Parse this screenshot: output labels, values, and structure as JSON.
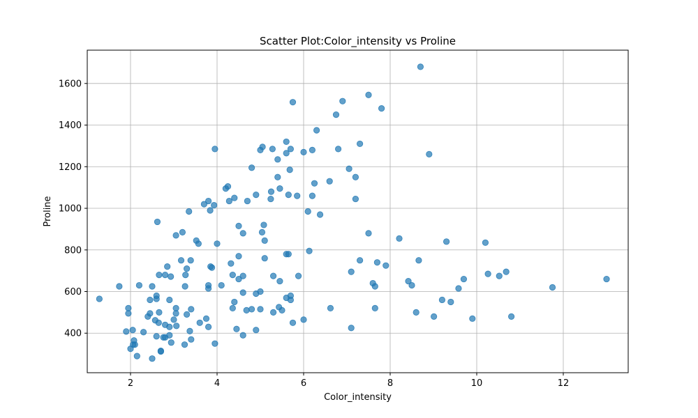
{
  "chart_data": {
    "type": "scatter",
    "title": "Scatter Plot:Color_intensity vs Proline",
    "xlabel": "Color_intensity",
    "ylabel": "Proline",
    "xlim": [
      1.0,
      13.5
    ],
    "ylim": [
      210,
      1760
    ],
    "xticks": [
      2,
      4,
      6,
      8,
      10,
      12
    ],
    "yticks": [
      400,
      600,
      800,
      1000,
      1200,
      1400,
      1600
    ],
    "grid": true,
    "marker_color": "#1f77b4",
    "marker_alpha": 0.7,
    "points": [
      [
        1.28,
        565
      ],
      [
        1.74,
        625
      ],
      [
        1.9,
        408
      ],
      [
        1.95,
        495
      ],
      [
        1.95,
        520
      ],
      [
        2.0,
        325
      ],
      [
        2.05,
        415
      ],
      [
        2.06,
        345
      ],
      [
        2.08,
        365
      ],
      [
        2.1,
        345
      ],
      [
        2.15,
        290
      ],
      [
        2.2,
        630
      ],
      [
        2.3,
        405
      ],
      [
        2.4,
        480
      ],
      [
        2.45,
        495
      ],
      [
        2.45,
        560
      ],
      [
        2.5,
        278
      ],
      [
        2.5,
        625
      ],
      [
        2.57,
        462
      ],
      [
        2.6,
        385
      ],
      [
        2.6,
        565
      ],
      [
        2.6,
        580
      ],
      [
        2.62,
        935
      ],
      [
        2.65,
        450
      ],
      [
        2.66,
        500
      ],
      [
        2.66,
        680
      ],
      [
        2.7,
        315
      ],
      [
        2.7,
        312
      ],
      [
        2.76,
        380
      ],
      [
        2.8,
        380
      ],
      [
        2.8,
        440
      ],
      [
        2.8,
        680
      ],
      [
        2.85,
        720
      ],
      [
        2.9,
        390
      ],
      [
        2.9,
        430
      ],
      [
        2.9,
        560
      ],
      [
        2.93,
        672
      ],
      [
        2.94,
        355
      ],
      [
        3.0,
        465
      ],
      [
        3.05,
        495
      ],
      [
        3.05,
        520
      ],
      [
        3.05,
        870
      ],
      [
        3.06,
        435
      ],
      [
        3.17,
        750
      ],
      [
        3.2,
        885
      ],
      [
        3.25,
        345
      ],
      [
        3.26,
        625
      ],
      [
        3.27,
        680
      ],
      [
        3.3,
        490
      ],
      [
        3.3,
        710
      ],
      [
        3.35,
        985
      ],
      [
        3.37,
        410
      ],
      [
        3.39,
        750
      ],
      [
        3.4,
        370
      ],
      [
        3.4,
        515
      ],
      [
        3.52,
        845
      ],
      [
        3.57,
        830
      ],
      [
        3.6,
        450
      ],
      [
        3.7,
        1020
      ],
      [
        3.75,
        470
      ],
      [
        3.8,
        630
      ],
      [
        3.8,
        615
      ],
      [
        3.8,
        430
      ],
      [
        3.8,
        1035
      ],
      [
        3.84,
        990
      ],
      [
        3.85,
        720
      ],
      [
        3.88,
        715
      ],
      [
        3.93,
        1015
      ],
      [
        3.95,
        350
      ],
      [
        3.95,
        1285
      ],
      [
        4.0,
        830
      ],
      [
        4.1,
        630
      ],
      [
        4.2,
        1095
      ],
      [
        4.25,
        1105
      ],
      [
        4.28,
        1035
      ],
      [
        4.32,
        735
      ],
      [
        4.36,
        680
      ],
      [
        4.36,
        520
      ],
      [
        4.4,
        550
      ],
      [
        4.4,
        1050
      ],
      [
        4.45,
        420
      ],
      [
        4.5,
        770
      ],
      [
        4.5,
        660
      ],
      [
        4.5,
        915
      ],
      [
        4.6,
        595
      ],
      [
        4.6,
        880
      ],
      [
        4.6,
        675
      ],
      [
        4.6,
        390
      ],
      [
        4.68,
        510
      ],
      [
        4.7,
        1035
      ],
      [
        4.8,
        1195
      ],
      [
        4.8,
        515
      ],
      [
        4.9,
        415
      ],
      [
        4.9,
        590
      ],
      [
        4.9,
        1065
      ],
      [
        5.0,
        515
      ],
      [
        5.0,
        600
      ],
      [
        5.0,
        1280
      ],
      [
        5.04,
        885
      ],
      [
        5.05,
        1295
      ],
      [
        5.08,
        920
      ],
      [
        5.1,
        845
      ],
      [
        5.1,
        760
      ],
      [
        5.24,
        1045
      ],
      [
        5.25,
        1080
      ],
      [
        5.28,
        1285
      ],
      [
        5.3,
        675
      ],
      [
        5.3,
        500
      ],
      [
        5.4,
        1235
      ],
      [
        5.4,
        1150
      ],
      [
        5.43,
        525
      ],
      [
        5.45,
        1095
      ],
      [
        5.45,
        650
      ],
      [
        5.5,
        510
      ],
      [
        5.6,
        570
      ],
      [
        5.6,
        780
      ],
      [
        5.6,
        1265
      ],
      [
        5.6,
        1320
      ],
      [
        5.65,
        1065
      ],
      [
        5.65,
        780
      ],
      [
        5.68,
        1185
      ],
      [
        5.7,
        1285
      ],
      [
        5.7,
        560
      ],
      [
        5.7,
        580
      ],
      [
        5.75,
        450
      ],
      [
        5.75,
        1510
      ],
      [
        5.85,
        1060
      ],
      [
        5.88,
        675
      ],
      [
        6.0,
        1270
      ],
      [
        6.0,
        465
      ],
      [
        6.1,
        985
      ],
      [
        6.13,
        795
      ],
      [
        6.2,
        1280
      ],
      [
        6.2,
        1060
      ],
      [
        6.25,
        1120
      ],
      [
        6.3,
        1375
      ],
      [
        6.38,
        970
      ],
      [
        6.6,
        1130
      ],
      [
        6.62,
        520
      ],
      [
        6.75,
        1450
      ],
      [
        6.8,
        1285
      ],
      [
        6.9,
        1515
      ],
      [
        7.05,
        1190
      ],
      [
        7.1,
        695
      ],
      [
        7.1,
        425
      ],
      [
        7.2,
        1045
      ],
      [
        7.2,
        1150
      ],
      [
        7.3,
        1310
      ],
      [
        7.3,
        750
      ],
      [
        7.5,
        880
      ],
      [
        7.5,
        1545
      ],
      [
        7.6,
        640
      ],
      [
        7.65,
        520
      ],
      [
        7.65,
        625
      ],
      [
        7.7,
        740
      ],
      [
        7.8,
        1480
      ],
      [
        7.9,
        725
      ],
      [
        8.21,
        855
      ],
      [
        8.42,
        650
      ],
      [
        8.5,
        630
      ],
      [
        8.6,
        500
      ],
      [
        8.66,
        750
      ],
      [
        8.7,
        1680
      ],
      [
        8.9,
        1260
      ],
      [
        9.01,
        480
      ],
      [
        9.2,
        560
      ],
      [
        9.3,
        840
      ],
      [
        9.4,
        550
      ],
      [
        9.58,
        615
      ],
      [
        9.7,
        660
      ],
      [
        9.9,
        470
      ],
      [
        10.2,
        835
      ],
      [
        10.26,
        685
      ],
      [
        10.52,
        675
      ],
      [
        10.68,
        695
      ],
      [
        10.8,
        480
      ],
      [
        11.75,
        620
      ],
      [
        13.0,
        660
      ]
    ]
  }
}
